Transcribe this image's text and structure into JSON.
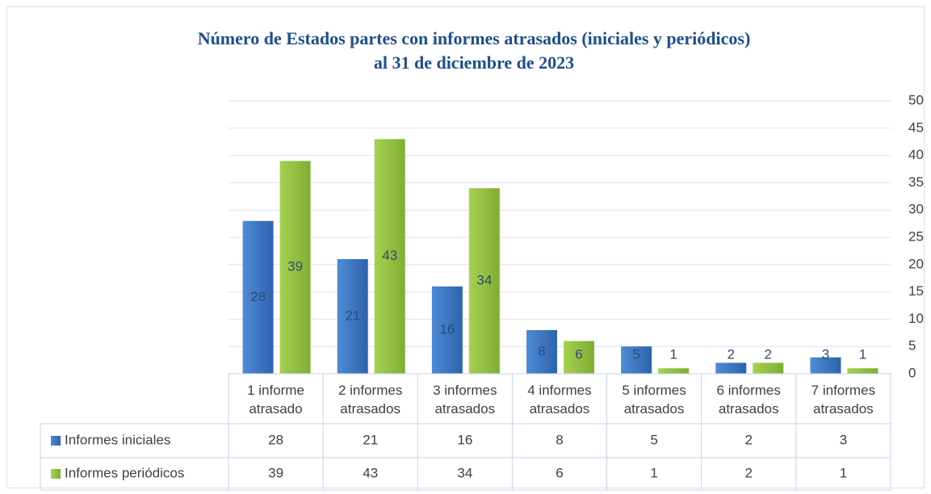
{
  "chart_data": {
    "type": "bar",
    "title": [
      "Número de Estados partes con informes atrasados (iniciales y periódicos)",
      "al 31 de diciembre de 2023"
    ],
    "categories": [
      "1 informe atrasado",
      "2 informes atrasados",
      "3 informes atrasados",
      "4 informes atrasados",
      "5 informes atrasados",
      "6 informes atrasados",
      "7 informes atrasados"
    ],
    "series": [
      {
        "name": "Informes iniciales",
        "color": "#3a74c4",
        "values": [
          28,
          21,
          16,
          8,
          5,
          2,
          3
        ]
      },
      {
        "name": "Informes periódicos",
        "color": "#8fbf3f",
        "values": [
          39,
          43,
          34,
          6,
          1,
          2,
          1
        ]
      }
    ],
    "ylim": [
      0,
      50
    ],
    "yticks": [
      0,
      5,
      10,
      15,
      20,
      25,
      30,
      35,
      40,
      45,
      50
    ],
    "grid": true
  }
}
